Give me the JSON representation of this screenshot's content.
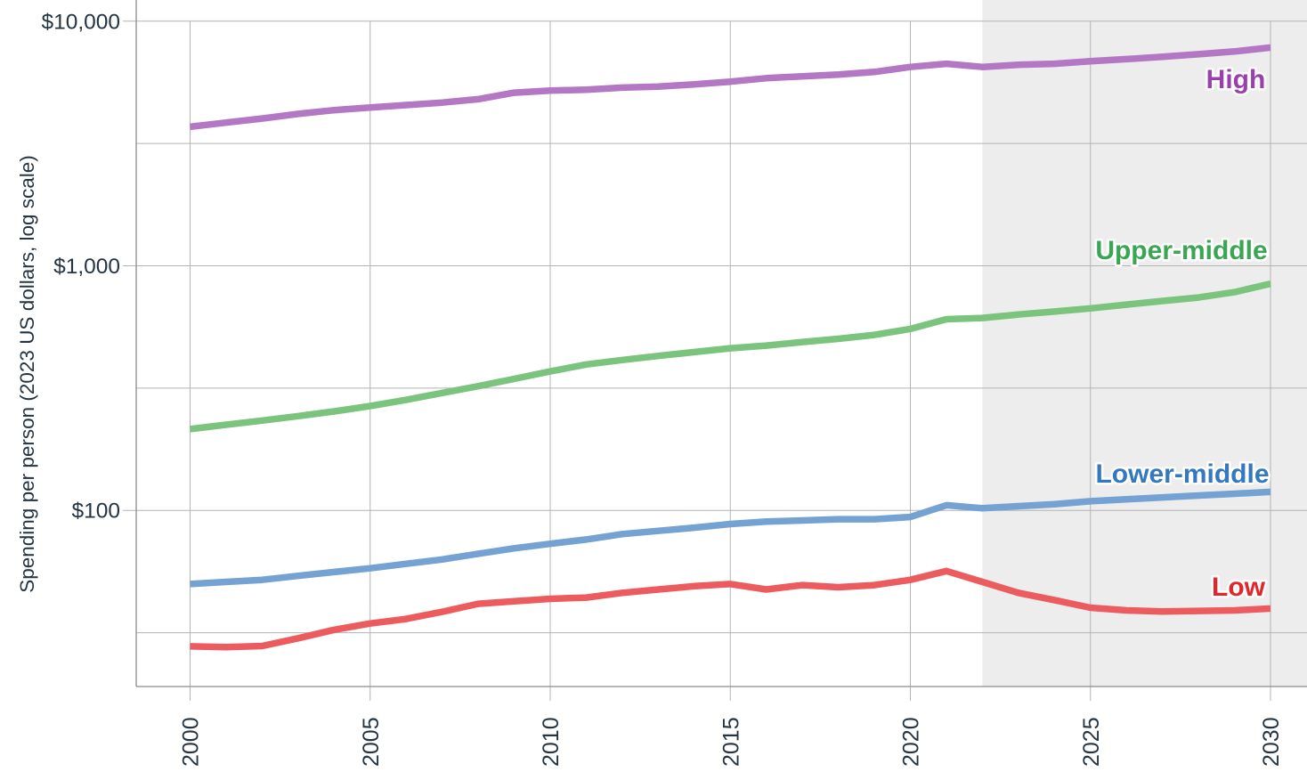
{
  "chart_data": {
    "type": "line",
    "title": "",
    "ylabel": "Spending per person (2023 US dollars, log scale)",
    "y_scale": "log",
    "grid": true,
    "legend_position": "line-end-labels",
    "projection_band_start_year": 2022,
    "background_color": "#ffffff",
    "projection_band_color": "#ededed",
    "gridline_color": "#b3b3b3",
    "axis_color": "#8c8c8c",
    "text_color": "#243442",
    "x": [
      2000,
      2001,
      2002,
      2003,
      2004,
      2005,
      2006,
      2007,
      2008,
      2009,
      2010,
      2011,
      2012,
      2013,
      2014,
      2015,
      2016,
      2017,
      2018,
      2019,
      2020,
      2021,
      2022,
      2023,
      2024,
      2025,
      2026,
      2027,
      2028,
      2029,
      2030
    ],
    "x_ticks": [
      "2000",
      "2005",
      "2010",
      "2015",
      "2020",
      "2025",
      "2030"
    ],
    "x_tick_years": [
      2000,
      2005,
      2010,
      2015,
      2020,
      2025,
      2030
    ],
    "y_ticks": [
      {
        "value": 10000,
        "label": "$10,000"
      },
      {
        "value": 1000,
        "label": "$1,000"
      },
      {
        "value": 100,
        "label": "$100"
      }
    ],
    "y_minor_gridlines": [
      3162,
      316,
      31.6
    ],
    "ylim": [
      19,
      12000
    ],
    "series": [
      {
        "name": "High",
        "line_color": "#b377c4",
        "label_color": "#9a3fae",
        "values": [
          3700,
          3850,
          4000,
          4180,
          4330,
          4440,
          4540,
          4650,
          4800,
          5100,
          5200,
          5250,
          5350,
          5400,
          5520,
          5660,
          5850,
          5950,
          6050,
          6200,
          6500,
          6700,
          6500,
          6630,
          6700,
          6860,
          7000,
          7160,
          7330,
          7520,
          7800
        ]
      },
      {
        "name": "Upper-middle",
        "line_color": "#7bc47d",
        "label_color": "#3aa653",
        "values": [
          215,
          224,
          233,
          243,
          254,
          267,
          283,
          302,
          322,
          345,
          370,
          395,
          412,
          428,
          444,
          460,
          472,
          488,
          503,
          522,
          552,
          605,
          612,
          632,
          650,
          670,
          694,
          718,
          742,
          780,
          845
        ]
      },
      {
        "name": "Lower-middle",
        "line_color": "#73a2d3",
        "label_color": "#3478bd",
        "values": [
          50,
          51,
          52,
          54,
          56,
          58,
          60.5,
          63,
          66.5,
          70,
          73,
          76,
          80,
          82.5,
          85,
          88,
          90,
          91,
          92,
          92,
          94,
          105,
          102,
          104,
          106,
          109,
          111,
          113,
          115,
          117,
          119
        ]
      },
      {
        "name": "Low",
        "line_color": "#ec5b5e",
        "label_color": "#e2262b",
        "values": [
          27.8,
          27.6,
          27.9,
          30,
          32.5,
          34.5,
          36,
          38.5,
          41.5,
          42.5,
          43.5,
          44,
          46,
          47.5,
          49,
          50,
          47.5,
          49.5,
          48.5,
          49.5,
          52,
          56.5,
          51,
          46,
          43,
          40,
          39,
          38.6,
          38.8,
          39,
          39.7
        ]
      }
    ]
  }
}
